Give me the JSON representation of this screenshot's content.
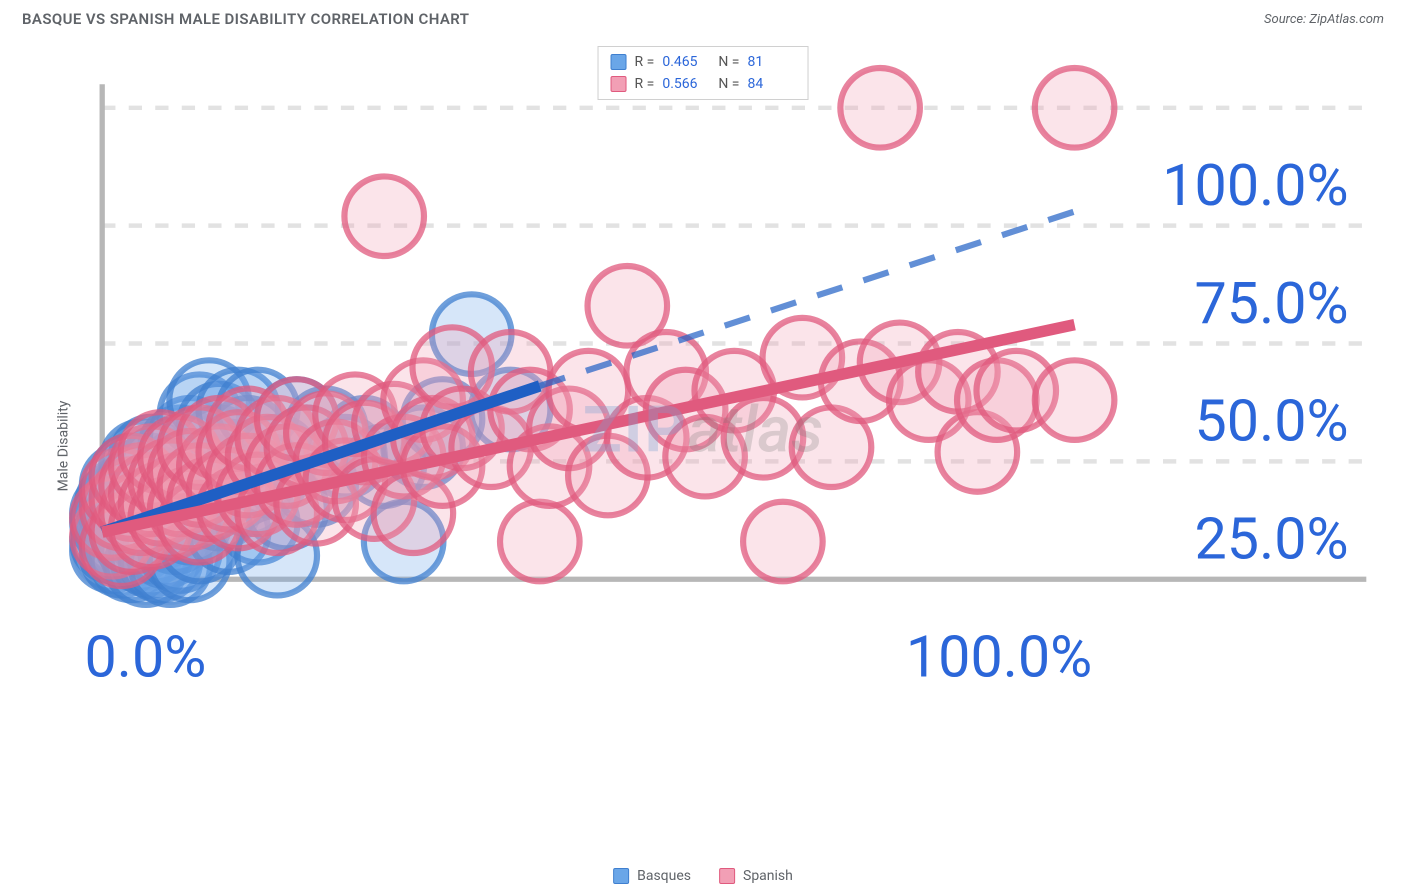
{
  "title": "BASQUE VS SPANISH MALE DISABILITY CORRELATION CHART",
  "source_label": "Source: ZipAtlas.com",
  "ylabel": "Male Disability",
  "watermark": {
    "part1": "ZIP",
    "part2": "atlas"
  },
  "chart": {
    "type": "scatter",
    "background_color": "#ffffff",
    "grid_color": "#e2e2e2",
    "axis_color": "#b7b7b7",
    "tick_color": "#2b66d9",
    "xlim": [
      0,
      100
    ],
    "ylim": [
      0,
      105
    ],
    "xticks": [
      0,
      100
    ],
    "xtick_labels": [
      "0.0%",
      "100.0%"
    ],
    "yticks": [
      25,
      50,
      75,
      100
    ],
    "ytick_labels": [
      "25.0%",
      "50.0%",
      "75.0%",
      "100.0%"
    ],
    "marker_radius": 9,
    "marker_stroke_width": 1.4,
    "marker_fill_opacity": 0.28,
    "series": [
      {
        "name": "Basques",
        "color": "#6aa6e8",
        "stroke": "#3f7fcf",
        "R": "0.465",
        "N": "81",
        "trend": {
          "x1": 0,
          "y1": 10,
          "x2": 45,
          "y2": 41,
          "dash_to_x": 100,
          "dash_to_y": 78,
          "width": 2.6
        },
        "points": [
          [
            1,
            6
          ],
          [
            1,
            8
          ],
          [
            1,
            12
          ],
          [
            1,
            14
          ],
          [
            1.5,
            10
          ],
          [
            1.5,
            16
          ],
          [
            2,
            5
          ],
          [
            2,
            9
          ],
          [
            2,
            13
          ],
          [
            2,
            17
          ],
          [
            2,
            20
          ],
          [
            2.5,
            7
          ],
          [
            3,
            4
          ],
          [
            3,
            11
          ],
          [
            3,
            14
          ],
          [
            3,
            18
          ],
          [
            3,
            22
          ],
          [
            3.5,
            8
          ],
          [
            3.5,
            19
          ],
          [
            4,
            6
          ],
          [
            4,
            12
          ],
          [
            4,
            16
          ],
          [
            4,
            21
          ],
          [
            4,
            25
          ],
          [
            4.5,
            3
          ],
          [
            4.5,
            10
          ],
          [
            5,
            5
          ],
          [
            5,
            14
          ],
          [
            5,
            17
          ],
          [
            5,
            22
          ],
          [
            5,
            26
          ],
          [
            5.5,
            8
          ],
          [
            6,
            4
          ],
          [
            6,
            11
          ],
          [
            6,
            15
          ],
          [
            6,
            19
          ],
          [
            6,
            24
          ],
          [
            6.5,
            7
          ],
          [
            7,
            3
          ],
          [
            7,
            13
          ],
          [
            7,
            17
          ],
          [
            7,
            21
          ],
          [
            7.5,
            10
          ],
          [
            8,
            6
          ],
          [
            8,
            16
          ],
          [
            8,
            23
          ],
          [
            8,
            28
          ],
          [
            9,
            4
          ],
          [
            9,
            12
          ],
          [
            9,
            30
          ],
          [
            10,
            8
          ],
          [
            10,
            18
          ],
          [
            10,
            35
          ],
          [
            11,
            22
          ],
          [
            11,
            38
          ],
          [
            12,
            15
          ],
          [
            12,
            28
          ],
          [
            12,
            33
          ],
          [
            13,
            10
          ],
          [
            13,
            25
          ],
          [
            14,
            36
          ],
          [
            15,
            18
          ],
          [
            15,
            30
          ],
          [
            16,
            12
          ],
          [
            16,
            36
          ],
          [
            17,
            22
          ],
          [
            18,
            5
          ],
          [
            18,
            26
          ],
          [
            19,
            15
          ],
          [
            20,
            34
          ],
          [
            21,
            28
          ],
          [
            22,
            20
          ],
          [
            23,
            32
          ],
          [
            25,
            26
          ],
          [
            27,
            30
          ],
          [
            29,
            24
          ],
          [
            31,
            8
          ],
          [
            33,
            28
          ],
          [
            35,
            34
          ],
          [
            38,
            52
          ],
          [
            42,
            36
          ]
        ]
      },
      {
        "name": "Spanish",
        "color": "#f29fb5",
        "stroke": "#e05a7e",
        "R": "0.566",
        "N": "84",
        "trend": {
          "x1": 0,
          "y1": 10,
          "x2": 100,
          "y2": 54,
          "width": 2.6
        },
        "points": [
          [
            1,
            9
          ],
          [
            1,
            13
          ],
          [
            2,
            7
          ],
          [
            2,
            15
          ],
          [
            2,
            19
          ],
          [
            3,
            10
          ],
          [
            3,
            17
          ],
          [
            3,
            22
          ],
          [
            4,
            14
          ],
          [
            4,
            20
          ],
          [
            5,
            11
          ],
          [
            5,
            18
          ],
          [
            5,
            24
          ],
          [
            6,
            16
          ],
          [
            6,
            27
          ],
          [
            7,
            13
          ],
          [
            7,
            21
          ],
          [
            8,
            18
          ],
          [
            8,
            26
          ],
          [
            9,
            15
          ],
          [
            9,
            23
          ],
          [
            10,
            12
          ],
          [
            10,
            20
          ],
          [
            10,
            28
          ],
          [
            11,
            17
          ],
          [
            12,
            24
          ],
          [
            12,
            30
          ],
          [
            13,
            19
          ],
          [
            14,
            15
          ],
          [
            14,
            27
          ],
          [
            15,
            22
          ],
          [
            15,
            32
          ],
          [
            16,
            18
          ],
          [
            17,
            26
          ],
          [
            18,
            14
          ],
          [
            18,
            30
          ],
          [
            19,
            24
          ],
          [
            20,
            20
          ],
          [
            20,
            34
          ],
          [
            21,
            28
          ],
          [
            22,
            16
          ],
          [
            23,
            31
          ],
          [
            24,
            25
          ],
          [
            25,
            21
          ],
          [
            26,
            35
          ],
          [
            27,
            29
          ],
          [
            28,
            17
          ],
          [
            29,
            77
          ],
          [
            30,
            33
          ],
          [
            31,
            26
          ],
          [
            32,
            14
          ],
          [
            33,
            38
          ],
          [
            34,
            30
          ],
          [
            35,
            24
          ],
          [
            36,
            45
          ],
          [
            37,
            32
          ],
          [
            40,
            28
          ],
          [
            42,
            44
          ],
          [
            44,
            36
          ],
          [
            45,
            8
          ],
          [
            46,
            24
          ],
          [
            48,
            32
          ],
          [
            50,
            40
          ],
          [
            52,
            22
          ],
          [
            54,
            58
          ],
          [
            56,
            30
          ],
          [
            58,
            44
          ],
          [
            60,
            36
          ],
          [
            62,
            26
          ],
          [
            65,
            40
          ],
          [
            68,
            30
          ],
          [
            70,
            8
          ],
          [
            72,
            47
          ],
          [
            75,
            28
          ],
          [
            78,
            42
          ],
          [
            80,
            100
          ],
          [
            82,
            46
          ],
          [
            85,
            38
          ],
          [
            88,
            44
          ],
          [
            90,
            27
          ],
          [
            92,
            38
          ],
          [
            94,
            40
          ],
          [
            100,
            38
          ],
          [
            100,
            100
          ]
        ]
      }
    ],
    "legend": {
      "items": [
        {
          "label": "Basques",
          "color": "#6aa6e8",
          "stroke": "#3f7fcf"
        },
        {
          "label": "Spanish",
          "color": "#f29fb5",
          "stroke": "#e05a7e"
        }
      ]
    }
  }
}
